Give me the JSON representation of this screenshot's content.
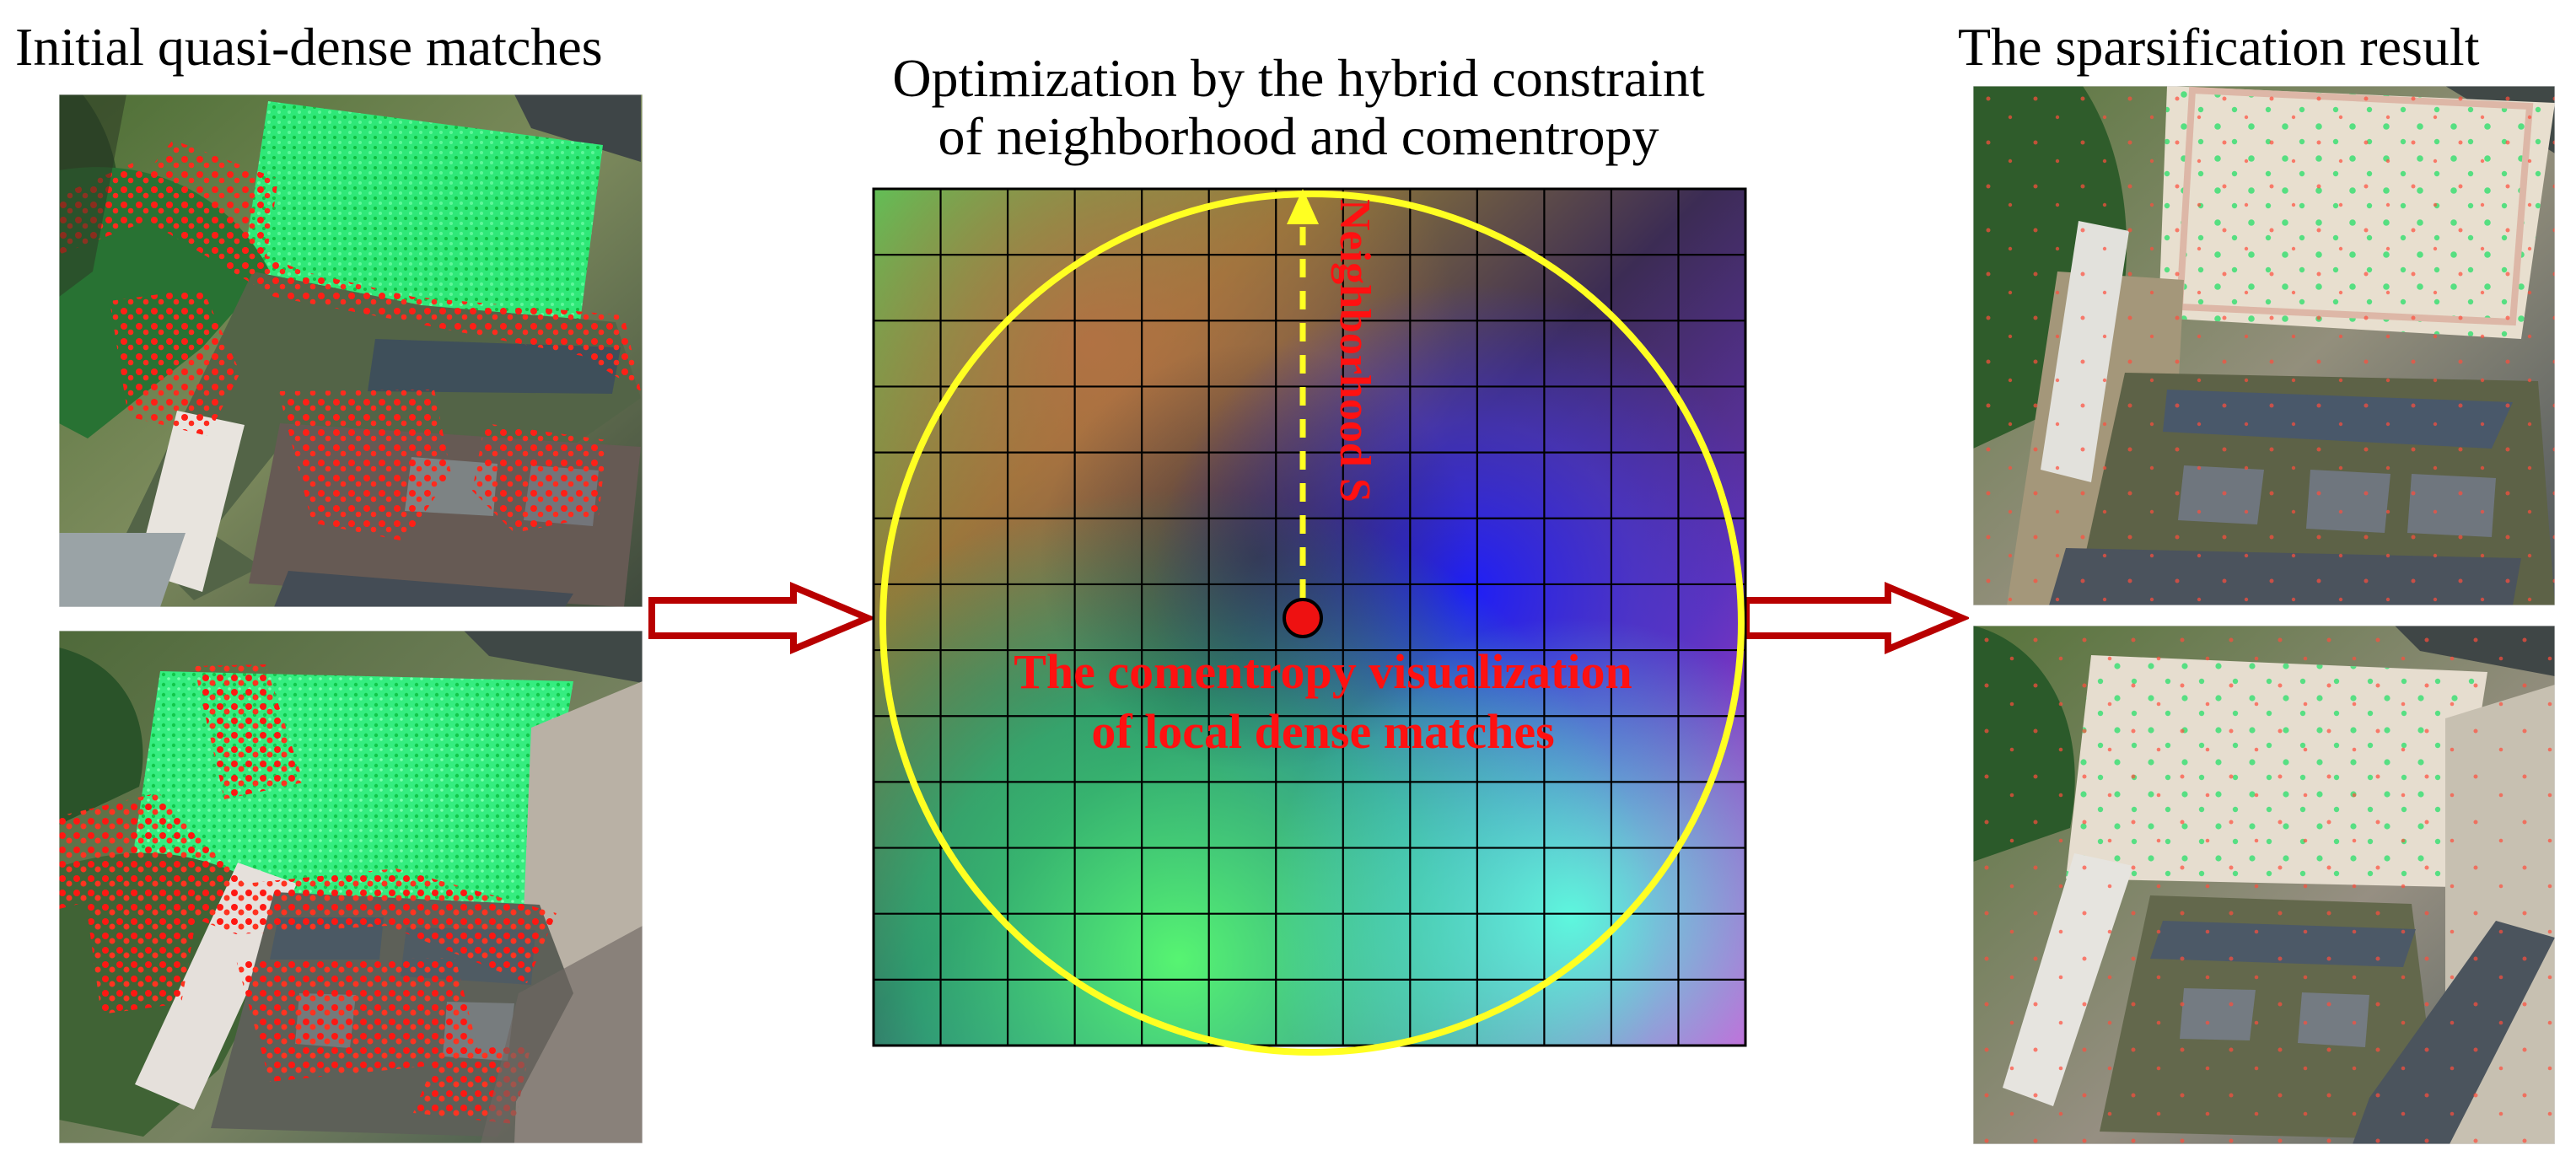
{
  "titles": {
    "left": "Initial quasi-dense matches",
    "middle_line_1": "Optimization by the hybrid constraint",
    "middle_line_2": "of neighborhood and comentropy",
    "right": "The sparsification result"
  },
  "center": {
    "neighborhood_label": "Neighborhood S",
    "visualization_line_1": "The comentropy visualization",
    "visualization_line_2": "of local dense matches",
    "grid_cells": 13,
    "colors": {
      "circle": "#ffff22",
      "label_red": "#ff1111",
      "arrow_yellow": "#ffff22",
      "center_dot": "#ee1111"
    }
  },
  "images": {
    "left_top": "initial-dense-matches-image-1",
    "left_bottom": "initial-dense-matches-image-2",
    "right_top": "sparsified-matches-image-1",
    "right_bottom": "sparsified-matches-image-2"
  },
  "arrows": {
    "color": "#b80000",
    "fill": "#ffffff"
  }
}
